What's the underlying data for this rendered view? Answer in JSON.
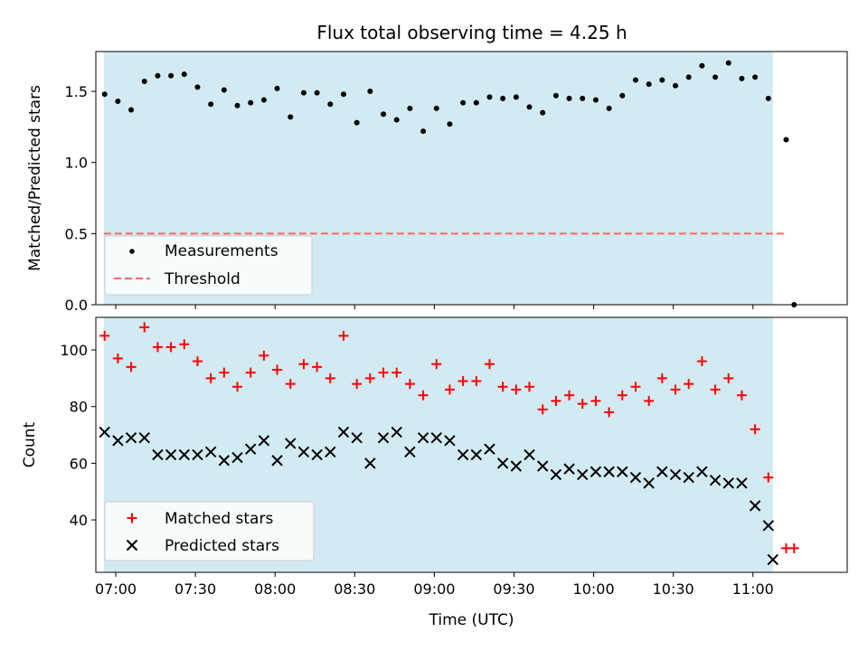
{
  "chart_data": {
    "type": "scatter",
    "title": "Flux total observing time = 4.25 h",
    "xlabel": "Time (UTC)",
    "x_tick_labels": [
      "07:00",
      "07:30",
      "08:00",
      "08:30",
      "09:00",
      "09:30",
      "10:00",
      "10:30",
      "11:00"
    ],
    "x_tick_minutes": [
      420,
      450,
      480,
      510,
      540,
      570,
      600,
      630,
      660
    ],
    "xlim_minutes": [
      412.5,
      695.5
    ],
    "shaded_span_minutes": [
      415.5,
      667.5
    ],
    "colors": {
      "shade": "#add8e6",
      "measurement": "#000000",
      "threshold": "#ff6666",
      "matched": "#ff0000",
      "predicted": "#000000"
    },
    "panels": [
      {
        "ylabel": "Matched/Predicted stars",
        "ylim": [
          0,
          1.78
        ],
        "y_tick_labels": [
          "0.0",
          "0.5",
          "1.0",
          "1.5"
        ],
        "y_ticks": [
          0,
          0.5,
          1.0,
          1.5
        ],
        "threshold": {
          "name": "Threshold",
          "y": 0.5,
          "x_range_minutes": [
            415.5,
            672.5
          ]
        },
        "series": [
          {
            "name": "Measurements",
            "marker": "dot",
            "x_minutes": [
              415.8,
              420.8,
              425.8,
              430.8,
              435.8,
              440.8,
              445.8,
              450.8,
              455.8,
              460.8,
              465.8,
              470.8,
              475.8,
              480.8,
              485.8,
              490.8,
              495.8,
              500.8,
              505.8,
              510.8,
              515.8,
              520.8,
              525.8,
              530.8,
              535.8,
              540.8,
              545.8,
              550.8,
              555.8,
              560.8,
              565.8,
              570.8,
              575.8,
              580.8,
              585.8,
              590.8,
              595.8,
              600.8,
              605.8,
              610.8,
              615.8,
              620.8,
              625.8,
              630.8,
              635.8,
              640.8,
              645.8,
              650.8,
              655.8,
              660.8,
              665.8,
              672.5
            ],
            "y": [
              1.48,
              1.43,
              1.37,
              1.57,
              1.61,
              1.61,
              1.62,
              1.53,
              1.41,
              1.51,
              1.4,
              1.42,
              1.44,
              1.52,
              1.32,
              1.49,
              1.49,
              1.41,
              1.48,
              1.28,
              1.5,
              1.34,
              1.3,
              1.38,
              1.22,
              1.38,
              1.27,
              1.42,
              1.42,
              1.46,
              1.45,
              1.46,
              1.39,
              1.35,
              1.47,
              1.45,
              1.45,
              1.44,
              1.38,
              1.47,
              1.58,
              1.55,
              1.58,
              1.54,
              1.6,
              1.68,
              1.6,
              1.7,
              1.59,
              1.6,
              1.45,
              1.16
            ]
          }
        ],
        "extra_point": {
          "x_minutes": 675.5,
          "y": 0.0
        },
        "legend": [
          "Measurements",
          "Threshold"
        ],
        "legend_position": "lower-left"
      },
      {
        "ylabel": "Count",
        "ylim": [
          21.5,
          111.5
        ],
        "y_tick_labels": [
          "40",
          "60",
          "80",
          "100"
        ],
        "y_ticks": [
          40,
          60,
          80,
          100
        ],
        "series": [
          {
            "name": "Matched stars",
            "marker": "plus",
            "x_minutes": [
              415.8,
              420.8,
              425.8,
              430.8,
              435.8,
              440.8,
              445.8,
              450.8,
              455.8,
              460.8,
              465.8,
              470.8,
              475.8,
              480.8,
              485.8,
              490.8,
              495.8,
              500.8,
              505.8,
              510.8,
              515.8,
              520.8,
              525.8,
              530.8,
              535.8,
              540.8,
              545.8,
              550.8,
              555.8,
              560.8,
              565.8,
              570.8,
              575.8,
              580.8,
              585.8,
              590.8,
              595.8,
              600.8,
              605.8,
              610.8,
              615.8,
              620.8,
              625.8,
              630.8,
              635.8,
              640.8,
              645.8,
              650.8,
              655.8,
              660.8,
              665.8,
              672.5
            ],
            "y": [
              105,
              97,
              94,
              108,
              101,
              101,
              102,
              96,
              90,
              92,
              87,
              92,
              98,
              93,
              88,
              95,
              94,
              90,
              105,
              88,
              90,
              92,
              92,
              88,
              84,
              95,
              86,
              89,
              89,
              95,
              87,
              86,
              87,
              79,
              82,
              84,
              81,
              82,
              78,
              84,
              87,
              82,
              90,
              86,
              88,
              96,
              86,
              90,
              84,
              72,
              55,
              30
            ]
          },
          {
            "name": "Predicted stars",
            "marker": "x",
            "x_minutes": [
              415.8,
              420.8,
              425.8,
              430.8,
              435.8,
              440.8,
              445.8,
              450.8,
              455.8,
              460.8,
              465.8,
              470.8,
              475.8,
              480.8,
              485.8,
              490.8,
              495.8,
              500.8,
              505.8,
              510.8,
              515.8,
              520.8,
              525.8,
              530.8,
              535.8,
              540.8,
              545.8,
              550.8,
              555.8,
              560.8,
              565.8,
              570.8,
              575.8,
              580.8,
              585.8,
              590.8,
              595.8,
              600.8,
              605.8,
              610.8,
              615.8,
              620.8,
              625.8,
              630.8,
              635.8,
              640.8,
              645.8,
              650.8,
              655.8,
              660.8,
              665.8,
              667.5
            ],
            "y": [
              71,
              68,
              69,
              69,
              63,
              63,
              63,
              63,
              64,
              61,
              62,
              65,
              68,
              61,
              67,
              64,
              63,
              64,
              71,
              69,
              60,
              69,
              71,
              64,
              69,
              69,
              68,
              63,
              63,
              65,
              60,
              59,
              63,
              59,
              56,
              58,
              56,
              57,
              57,
              57,
              55,
              53,
              57,
              56,
              55,
              57,
              54,
              53,
              53,
              45,
              38,
              26
            ]
          }
        ],
        "extra_point": {
          "x_minutes": 675.5,
          "y": 30
        },
        "legend": [
          "Matched stars",
          "Predicted stars"
        ],
        "legend_position": "lower-left"
      }
    ]
  }
}
